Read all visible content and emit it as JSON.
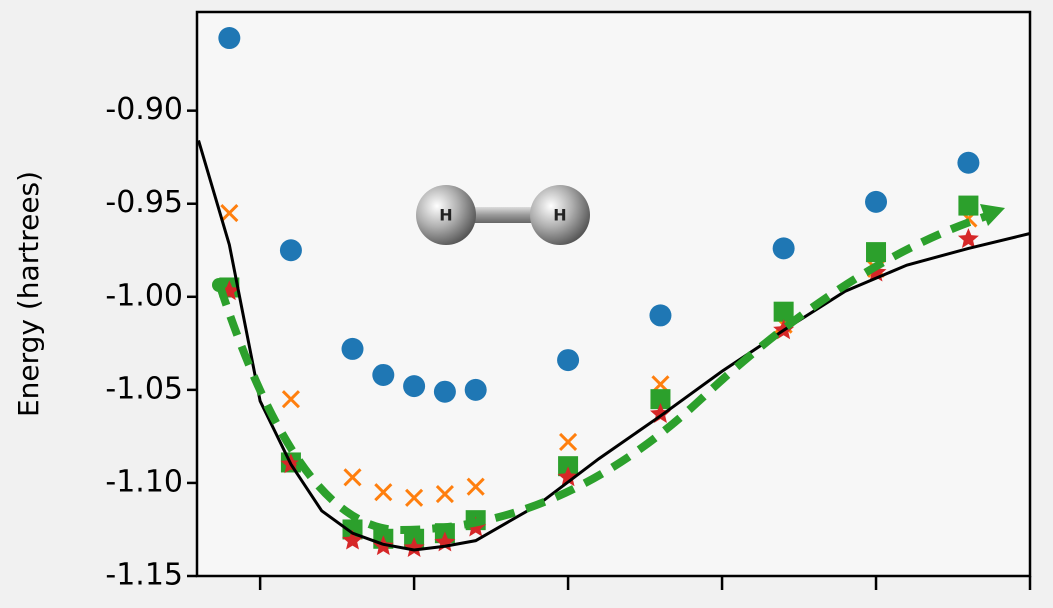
{
  "chart_data": {
    "type": "scatter",
    "ylabel": "Energy (hartrees)",
    "annotations": [
      "H",
      "H"
    ],
    "xlim": [
      0.295,
      3.0
    ],
    "xticks": [
      0.5,
      1.0,
      1.5,
      2.0,
      2.5,
      3.0
    ],
    "ylim": [
      -1.15,
      -0.847
    ],
    "yticks": [
      {
        "value": -0.9,
        "label": "-0.90"
      },
      {
        "value": -0.95,
        "label": "-0.95"
      },
      {
        "value": -1.0,
        "label": "-1.00"
      },
      {
        "value": -1.05,
        "label": "-1.05"
      },
      {
        "value": -1.1,
        "label": "-1.10"
      },
      {
        "value": -1.15,
        "label": "-1.15"
      }
    ],
    "series": [
      {
        "marker": "circle",
        "color": "#1f77b4",
        "x": [
          0.4,
          0.6,
          0.8,
          0.9,
          1.0,
          1.1,
          1.2,
          1.5,
          1.8,
          2.2,
          2.5,
          2.8
        ],
        "values": [
          -0.861,
          -0.975,
          -1.028,
          -1.042,
          -1.048,
          -1.051,
          -1.05,
          -1.034,
          -1.01,
          -0.974,
          -0.949,
          -0.928
        ]
      },
      {
        "marker": "x",
        "color": "#ff7f0e",
        "x": [
          0.4,
          0.6,
          0.8,
          0.9,
          1.0,
          1.1,
          1.2,
          1.5,
          1.8,
          2.2,
          2.5,
          2.8
        ],
        "values": [
          -0.955,
          -1.055,
          -1.097,
          -1.105,
          -1.108,
          -1.106,
          -1.102,
          -1.078,
          -1.047,
          -1.015,
          -0.985,
          -0.958
        ]
      },
      {
        "marker": "square",
        "color": "#2ca02c",
        "x": [
          0.4,
          0.6,
          0.8,
          0.9,
          1.0,
          1.1,
          1.2,
          1.5,
          1.8,
          2.2,
          2.5,
          2.8
        ],
        "values": [
          -0.995,
          -1.089,
          -1.125,
          -1.13,
          -1.13,
          -1.127,
          -1.12,
          -1.091,
          -1.055,
          -1.008,
          -0.976,
          -0.951
        ]
      },
      {
        "marker": "star",
        "color": "#d62728",
        "x": [
          0.4,
          0.6,
          0.8,
          0.9,
          1.0,
          1.1,
          1.2,
          1.5,
          1.8,
          2.2,
          2.5,
          2.8
        ],
        "values": [
          -0.997,
          -1.09,
          -1.131,
          -1.134,
          -1.135,
          -1.132,
          -1.124,
          -1.097,
          -1.063,
          -1.018,
          -0.987,
          -0.969
        ]
      },
      {
        "marker": "line",
        "color": "#000000",
        "x": [
          0.3,
          0.4,
          0.5,
          0.6,
          0.7,
          0.8,
          0.9,
          1.0,
          1.1,
          1.2,
          1.4,
          1.6,
          1.8,
          2.0,
          2.2,
          2.4,
          2.6,
          2.8,
          3.0
        ],
        "values": [
          -0.916,
          -0.972,
          -1.056,
          -1.09,
          -1.115,
          -1.127,
          -1.133,
          -1.136,
          -1.134,
          -1.131,
          -1.112,
          -1.087,
          -1.064,
          -1.04,
          -1.018,
          -0.997,
          -0.983,
          -0.974,
          -0.966
        ]
      }
    ]
  }
}
